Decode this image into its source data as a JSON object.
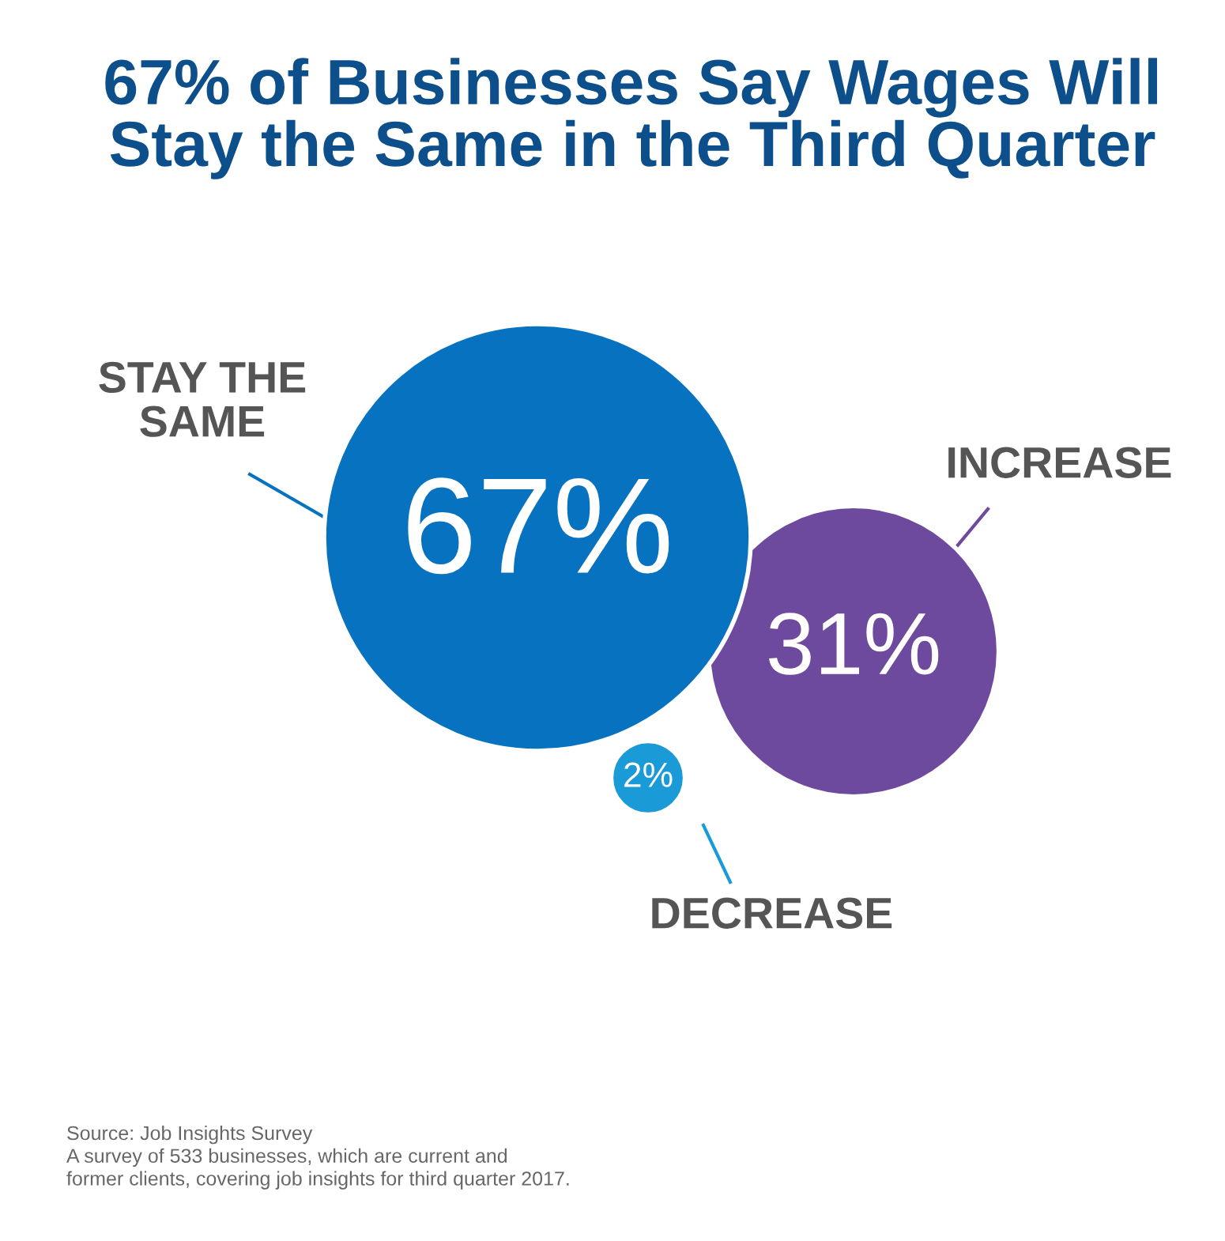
{
  "chart_data": {
    "type": "other",
    "title": "67% of Businesses Say Wages Will\nStay the Same in the Third Quarter",
    "categories": [
      "STAY THE\nSAME",
      "INCREASE",
      "DECREASE"
    ],
    "values": [
      67,
      31,
      2
    ],
    "value_labels": [
      "67%",
      "31%",
      "2%"
    ],
    "colors": [
      "#0672c0",
      "#6e4a9e",
      "#1a9bd7"
    ],
    "annotations": [
      "Source: Job Insights Survey\nA survey of 533 businesses, which are current and\nformer clients, covering job insights for third quarter 2017."
    ]
  }
}
